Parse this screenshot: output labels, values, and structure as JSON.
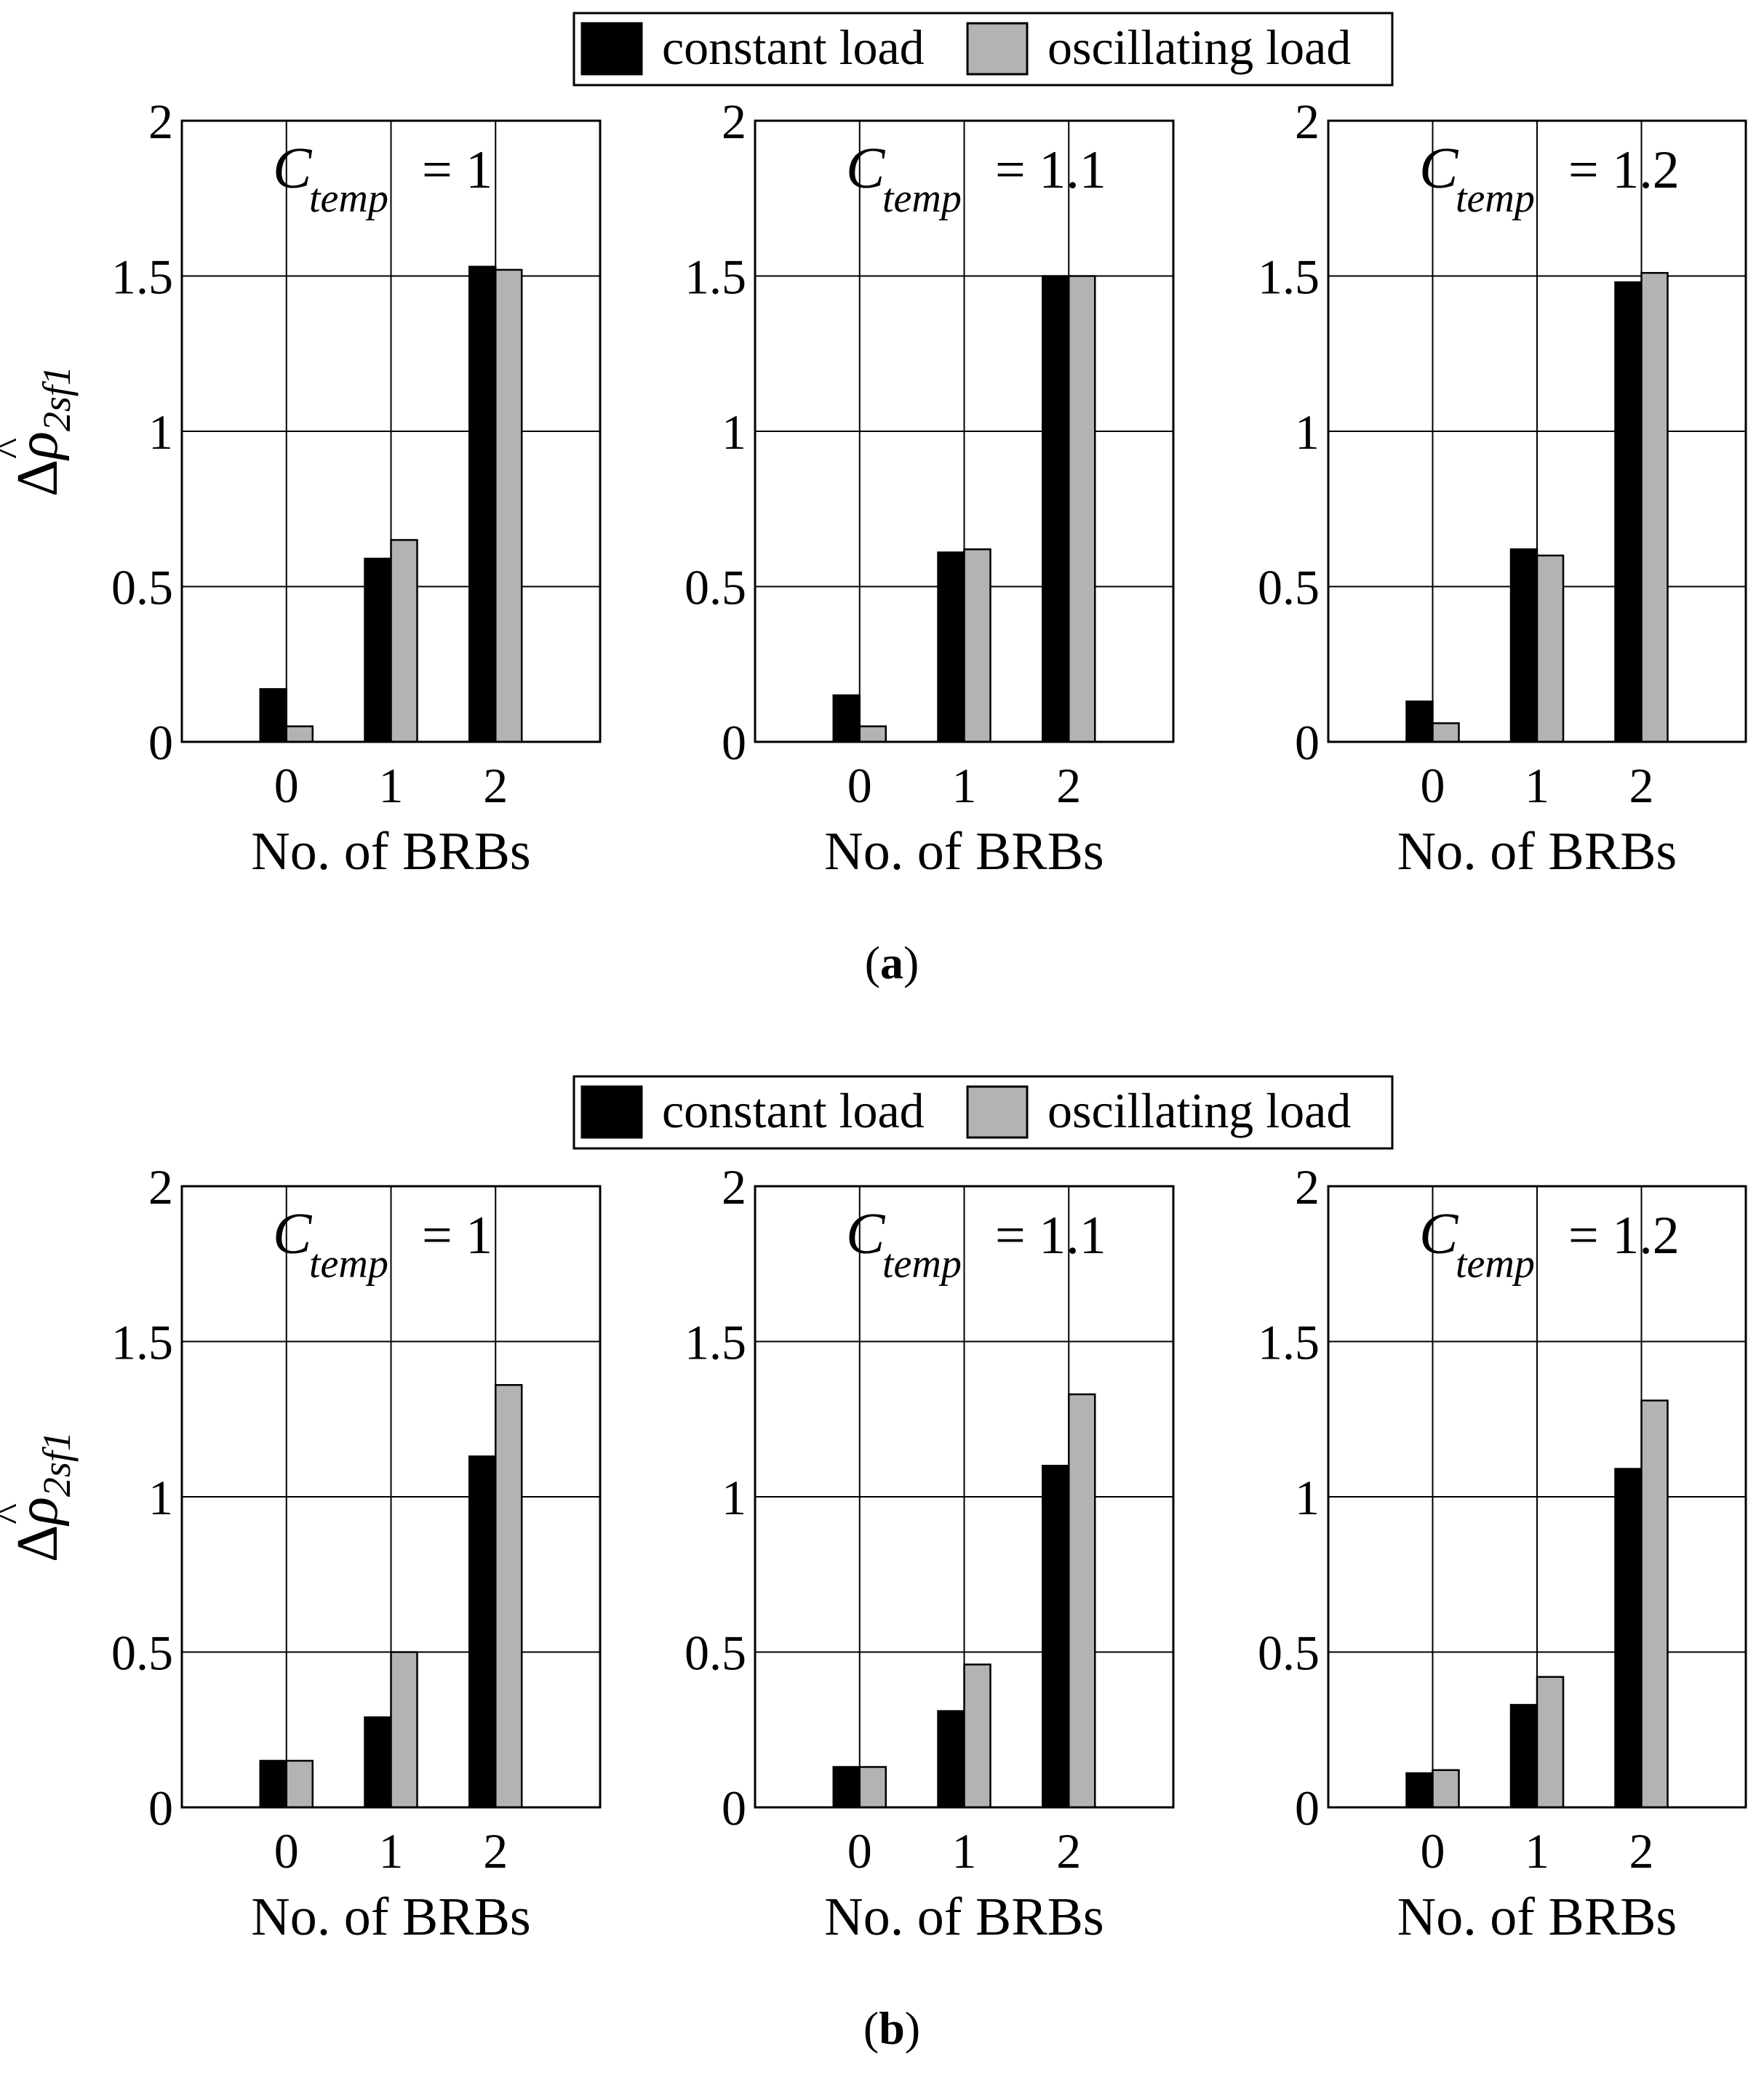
{
  "legend": {
    "constant_label": "constant load",
    "oscillating_label": "oscillating load"
  },
  "colors": {
    "constant": "#000000",
    "oscillating": "#b3b3b3",
    "axis": "#000000",
    "grid": "#000000"
  },
  "ylabel": {
    "delta": "Δ",
    "rho": "ρ",
    "hat": "^",
    "subscript": "2sf1"
  },
  "panels": [
    {
      "label": "(a)",
      "label_letter": "a"
    },
    {
      "label": "(b)",
      "label_letter": "b"
    }
  ],
  "chart_data": [
    {
      "type": "bar",
      "panel": "a",
      "title_symbol": "C",
      "title_subscript": "temp",
      "title_value": "= 1",
      "categories": [
        "0",
        "1",
        "2"
      ],
      "xlabel": "No. of BRBs",
      "ylim": [
        0,
        2
      ],
      "yticks": [
        0,
        0.5,
        1,
        1.5,
        2
      ],
      "ytick_labels": [
        "0",
        "0.5",
        "1",
        "1.5",
        "2"
      ],
      "xlim": [
        -1,
        3
      ],
      "grid": true,
      "series": [
        {
          "name": "constant load",
          "values": [
            0.17,
            0.59,
            1.53
          ]
        },
        {
          "name": "oscillating load",
          "values": [
            0.05,
            0.65,
            1.52
          ]
        }
      ]
    },
    {
      "type": "bar",
      "panel": "a",
      "title_symbol": "C",
      "title_subscript": "temp",
      "title_value": "= 1.1",
      "categories": [
        "0",
        "1",
        "2"
      ],
      "xlabel": "No. of BRBs",
      "ylim": [
        0,
        2
      ],
      "yticks": [
        0,
        0.5,
        1,
        1.5,
        2
      ],
      "ytick_labels": [
        "0",
        "0.5",
        "1",
        "1.5",
        "2"
      ],
      "xlim": [
        -1,
        3
      ],
      "grid": true,
      "series": [
        {
          "name": "constant load",
          "values": [
            0.15,
            0.61,
            1.5
          ]
        },
        {
          "name": "oscillating load",
          "values": [
            0.05,
            0.62,
            1.5
          ]
        }
      ]
    },
    {
      "type": "bar",
      "panel": "a",
      "title_symbol": "C",
      "title_subscript": "temp",
      "title_value": "= 1.2",
      "categories": [
        "0",
        "1",
        "2"
      ],
      "xlabel": "No. of BRBs",
      "ylim": [
        0,
        2
      ],
      "yticks": [
        0,
        0.5,
        1,
        1.5,
        2
      ],
      "ytick_labels": [
        "0",
        "0.5",
        "1",
        "1.5",
        "2"
      ],
      "xlim": [
        -1,
        3
      ],
      "grid": true,
      "series": [
        {
          "name": "constant load",
          "values": [
            0.13,
            0.62,
            1.48
          ]
        },
        {
          "name": "oscillating load",
          "values": [
            0.06,
            0.6,
            1.51
          ]
        }
      ]
    },
    {
      "type": "bar",
      "panel": "b",
      "title_symbol": "C",
      "title_subscript": "temp",
      "title_value": "= 1",
      "categories": [
        "0",
        "1",
        "2"
      ],
      "xlabel": "No. of BRBs",
      "ylim": [
        0,
        2
      ],
      "yticks": [
        0,
        0.5,
        1,
        1.5,
        2
      ],
      "ytick_labels": [
        "0",
        "0.5",
        "1",
        "1.5",
        "2"
      ],
      "xlim": [
        -1,
        3
      ],
      "grid": true,
      "series": [
        {
          "name": "constant load",
          "values": [
            0.15,
            0.29,
            1.13
          ]
        },
        {
          "name": "oscillating load",
          "values": [
            0.15,
            0.5,
            1.36
          ]
        }
      ]
    },
    {
      "type": "bar",
      "panel": "b",
      "title_symbol": "C",
      "title_subscript": "temp",
      "title_value": "= 1.1",
      "categories": [
        "0",
        "1",
        "2"
      ],
      "xlabel": "No. of BRBs",
      "ylim": [
        0,
        2
      ],
      "yticks": [
        0,
        0.5,
        1,
        1.5,
        2
      ],
      "ytick_labels": [
        "0",
        "0.5",
        "1",
        "1.5",
        "2"
      ],
      "xlim": [
        -1,
        3
      ],
      "grid": true,
      "series": [
        {
          "name": "constant load",
          "values": [
            0.13,
            0.31,
            1.1
          ]
        },
        {
          "name": "oscillating load",
          "values": [
            0.13,
            0.46,
            1.33
          ]
        }
      ]
    },
    {
      "type": "bar",
      "panel": "b",
      "title_symbol": "C",
      "title_subscript": "temp",
      "title_value": "= 1.2",
      "categories": [
        "0",
        "1",
        "2"
      ],
      "xlabel": "No. of BRBs",
      "ylim": [
        0,
        2
      ],
      "yticks": [
        0,
        0.5,
        1,
        1.5,
        2
      ],
      "ytick_labels": [
        "0",
        "0.5",
        "1",
        "1.5",
        "2"
      ],
      "xlim": [
        -1,
        3
      ],
      "grid": true,
      "series": [
        {
          "name": "constant load",
          "values": [
            0.11,
            0.33,
            1.09
          ]
        },
        {
          "name": "oscillating load",
          "values": [
            0.12,
            0.42,
            1.31
          ]
        }
      ]
    }
  ]
}
